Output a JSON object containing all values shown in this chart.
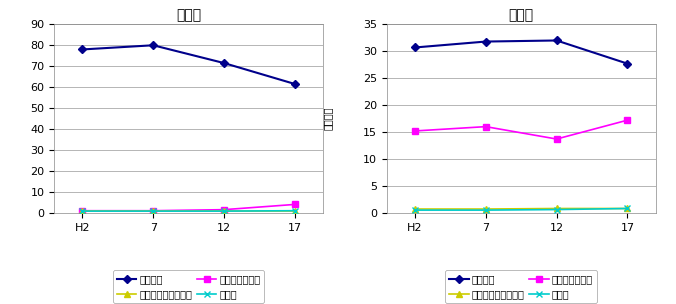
{
  "x_labels": [
    "H2",
    "7",
    "12",
    "17"
  ],
  "x_values": [
    0,
    1,
    2,
    3
  ],
  "male": {
    "title": "（男）",
    "ylim": [
      0,
      90
    ],
    "yticks": [
      0,
      10,
      20,
      30,
      40,
      50,
      60,
      70,
      80,
      90
    ],
    "series": {
      "主に仕事": {
        "values": [
          78,
          80,
          71.5,
          61.5
        ],
        "color": "#00008B",
        "marker": "D"
      },
      "家事のほか仕事": {
        "values": [
          1.0,
          1.0,
          1.5,
          4.0
        ],
        "color": "#FF00FF",
        "marker": "s"
      },
      "通学のかたわら仕事": {
        "values": [
          0.8,
          0.8,
          0.8,
          0.8
        ],
        "color": "#CCCC00",
        "marker": "^"
      },
      "休業者": {
        "values": [
          0.8,
          0.8,
          0.8,
          1.0
        ],
        "color": "#00CCCC",
        "marker": "x"
      }
    }
  },
  "female": {
    "title": "（女）",
    "ylim": [
      0,
      35
    ],
    "yticks": [
      0,
      5,
      10,
      15,
      20,
      25,
      30,
      35
    ],
    "series": {
      "主に仕事": {
        "values": [
          30.7,
          31.8,
          32.0,
          27.7
        ],
        "color": "#00008B",
        "marker": "D"
      },
      "家事のほか仕事": {
        "values": [
          15.2,
          16.0,
          13.7,
          17.2
        ],
        "color": "#FF00FF",
        "marker": "s"
      },
      "通学のかたわら仕事": {
        "values": [
          0.7,
          0.7,
          0.8,
          0.8
        ],
        "color": "#CCCC00",
        "marker": "^"
      },
      "休業者": {
        "values": [
          0.5,
          0.5,
          0.6,
          0.8
        ],
        "color": "#00CCCC",
        "marker": "x"
      }
    }
  },
  "ylabel": "（千人）",
  "legend_order": [
    "主に仕事",
    "家事のほか仕事",
    "通学のかたわら仕事",
    "休業者"
  ],
  "background_color": "#ffffff",
  "plot_bg_color": "#ffffff",
  "grid_color": "#aaaaaa",
  "title_fontsize": 10,
  "tick_fontsize": 8,
  "legend_fontsize": 7
}
